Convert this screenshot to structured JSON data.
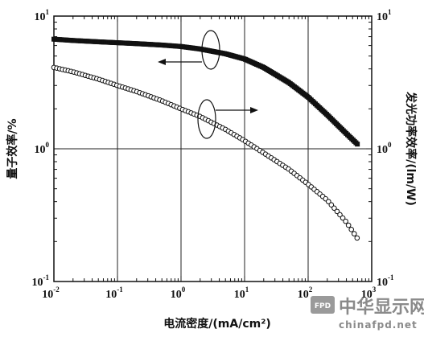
{
  "chart_data": {
    "type": "scatter",
    "xlabel": "电流密度/(mA/cm²)",
    "ylabel_left": "量子效率/%",
    "ylabel_right": "发光功率效率/(lm/W)",
    "xscale": "log",
    "yscale": "log",
    "xlim": [
      0.01,
      1000
    ],
    "ylim_left": [
      0.1,
      10
    ],
    "ylim_right": [
      0.1,
      10
    ],
    "grid": true,
    "x_ticks": [
      {
        "base": "10",
        "exp": "-2"
      },
      {
        "base": "10",
        "exp": "-1"
      },
      {
        "base": "10",
        "exp": "0"
      },
      {
        "base": "10",
        "exp": "1"
      },
      {
        "base": "10",
        "exp": "2"
      },
      {
        "base": "10",
        "exp": "3"
      }
    ],
    "y_ticks_left": [
      {
        "base": "10",
        "exp": "-1"
      },
      {
        "base": "10",
        "exp": "0"
      },
      {
        "base": "10",
        "exp": "1"
      }
    ],
    "y_ticks_right": [
      {
        "base": "10",
        "exp": "-1"
      },
      {
        "base": "10",
        "exp": "0"
      },
      {
        "base": "10",
        "exp": "1"
      }
    ],
    "series": [
      {
        "marker": "filled-square",
        "axis": "left",
        "color": "#111111",
        "points": [
          [
            0.01,
            6.7
          ],
          [
            0.02,
            6.55
          ],
          [
            0.05,
            6.4
          ],
          [
            0.1,
            6.3
          ],
          [
            0.2,
            6.2
          ],
          [
            0.5,
            6.05
          ],
          [
            1,
            5.9
          ],
          [
            2,
            5.65
          ],
          [
            5,
            5.2
          ],
          [
            10,
            4.75
          ],
          [
            20,
            4.1
          ],
          [
            50,
            3.15
          ],
          [
            100,
            2.45
          ],
          [
            200,
            1.8
          ],
          [
            400,
            1.3
          ],
          [
            600,
            1.08
          ]
        ]
      },
      {
        "marker": "open-circle",
        "axis": "right",
        "color": "#111111",
        "points": [
          [
            0.01,
            4.1
          ],
          [
            0.02,
            3.8
          ],
          [
            0.05,
            3.35
          ],
          [
            0.1,
            3.0
          ],
          [
            0.2,
            2.7
          ],
          [
            0.5,
            2.3
          ],
          [
            1,
            2.0
          ],
          [
            2,
            1.75
          ],
          [
            5,
            1.4
          ],
          [
            10,
            1.15
          ],
          [
            20,
            0.93
          ],
          [
            50,
            0.7
          ],
          [
            100,
            0.54
          ],
          [
            200,
            0.41
          ],
          [
            400,
            0.28
          ],
          [
            600,
            0.21
          ]
        ]
      }
    ],
    "annotations": [
      {
        "type": "ellipse-with-arrow",
        "target_series": 0,
        "arrow_direction": "left"
      },
      {
        "type": "ellipse-with-arrow",
        "target_series": 1,
        "arrow_direction": "right"
      }
    ]
  },
  "watermark": {
    "logo_glyph": "FPD",
    "cn": "中华显示网",
    "en": "chinafpd.net"
  }
}
